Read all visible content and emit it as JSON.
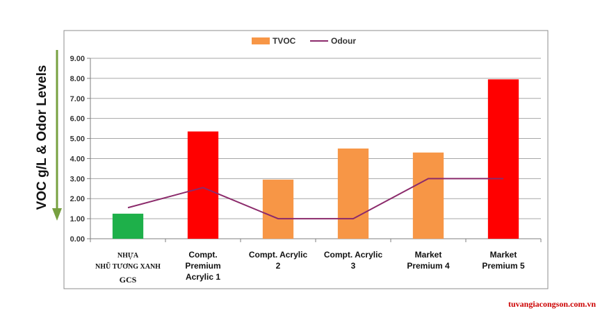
{
  "chart_data": {
    "type": "bar",
    "title": "",
    "xlabel": "",
    "ylabel": "VOC g/L & Odor Levels",
    "ylim": [
      0,
      9
    ],
    "y_ticks": [
      "0.00",
      "1.00",
      "2.00",
      "3.00",
      "4.00",
      "5.00",
      "6.00",
      "7.00",
      "8.00",
      "9.00"
    ],
    "grid": true,
    "legend_position": "top",
    "categories": [
      {
        "lines": [
          "NHỰA",
          "NHŨ TƯƠNG XANH"
        ],
        "emphasis": "GCS"
      },
      {
        "lines": [
          "Compt.",
          "Premium",
          "Acrylic 1"
        ]
      },
      {
        "lines": [
          "Compt. Acrylic",
          "2"
        ]
      },
      {
        "lines": [
          "Compt. Acrylic",
          "3"
        ]
      },
      {
        "lines": [
          "Market",
          "Premium 4"
        ]
      },
      {
        "lines": [
          "Market",
          "Premium 5"
        ]
      }
    ],
    "series": [
      {
        "name": "TVOC",
        "kind": "bar",
        "values": [
          1.25,
          5.35,
          2.95,
          4.5,
          4.3,
          7.95
        ],
        "colors": [
          "#1eb04a",
          "#ff0000",
          "#f79646",
          "#f79646",
          "#f79646",
          "#ff0000"
        ],
        "legend_color": "#f79646"
      },
      {
        "name": "Odour",
        "kind": "line",
        "values": [
          1.55,
          2.55,
          1.0,
          1.0,
          3.0,
          3.0
        ],
        "color": "#8b2a6b"
      }
    ],
    "colors": {
      "grid": "#a6a6a6",
      "axis_arrow": "#77a040",
      "emphasis_text": "#e00000"
    }
  },
  "footer": {
    "text": "tuvangiacongson.com.vn",
    "color": "#cc0000"
  }
}
